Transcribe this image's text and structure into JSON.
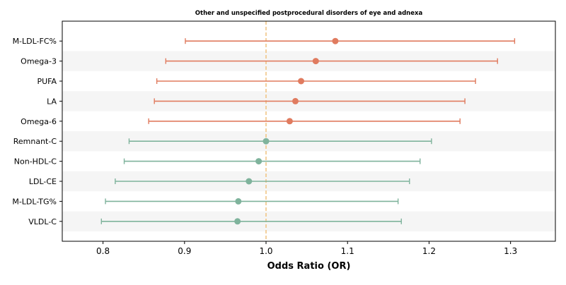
{
  "chart_data": {
    "type": "forest",
    "title": "Other and unspecified postprocedural disorders of eye and adnexa",
    "xlabel": "Odds Ratio (OR)",
    "ylabel": "",
    "xlim": [
      0.75,
      1.355
    ],
    "xticks": [
      0.8,
      0.9,
      1.0,
      1.1,
      1.2,
      1.3
    ],
    "xtick_labels": [
      "0.8",
      "0.9",
      "1.0",
      "1.1",
      "1.2",
      "1.3"
    ],
    "reference_line": 1.0,
    "grid": false,
    "row_banding": true,
    "rows": [
      {
        "label": "M-LDL-FC%",
        "or": 1.085,
        "lower": 0.901,
        "upper": 1.305,
        "color": "#e07b5f"
      },
      {
        "label": "Omega-3",
        "or": 1.061,
        "lower": 0.877,
        "upper": 1.284,
        "color": "#e07b5f"
      },
      {
        "label": "PUFA",
        "or": 1.043,
        "lower": 0.866,
        "upper": 1.257,
        "color": "#e07b5f"
      },
      {
        "label": "LA",
        "or": 1.036,
        "lower": 0.863,
        "upper": 1.244,
        "color": "#e07b5f"
      },
      {
        "label": "Omega-6",
        "or": 1.029,
        "lower": 0.856,
        "upper": 1.238,
        "color": "#e07b5f"
      },
      {
        "label": "Remnant-C",
        "or": 1.0,
        "lower": 0.832,
        "upper": 1.203,
        "color": "#7fb39c"
      },
      {
        "label": "Non-HDL-C",
        "or": 0.991,
        "lower": 0.826,
        "upper": 1.189,
        "color": "#7fb39c"
      },
      {
        "label": "LDL-CE",
        "or": 0.979,
        "lower": 0.815,
        "upper": 1.176,
        "color": "#7fb39c"
      },
      {
        "label": "M-LDL-TG%",
        "or": 0.966,
        "lower": 0.803,
        "upper": 1.162,
        "color": "#7fb39c"
      },
      {
        "label": "VLDL-C",
        "or": 0.965,
        "lower": 0.798,
        "upper": 1.166,
        "color": "#7fb39c"
      }
    ],
    "colors": {
      "positive": "#e07b5f",
      "neutral": "#7fb39c",
      "reference_line": "#f0c27f",
      "band": "#f5f5f5"
    }
  }
}
